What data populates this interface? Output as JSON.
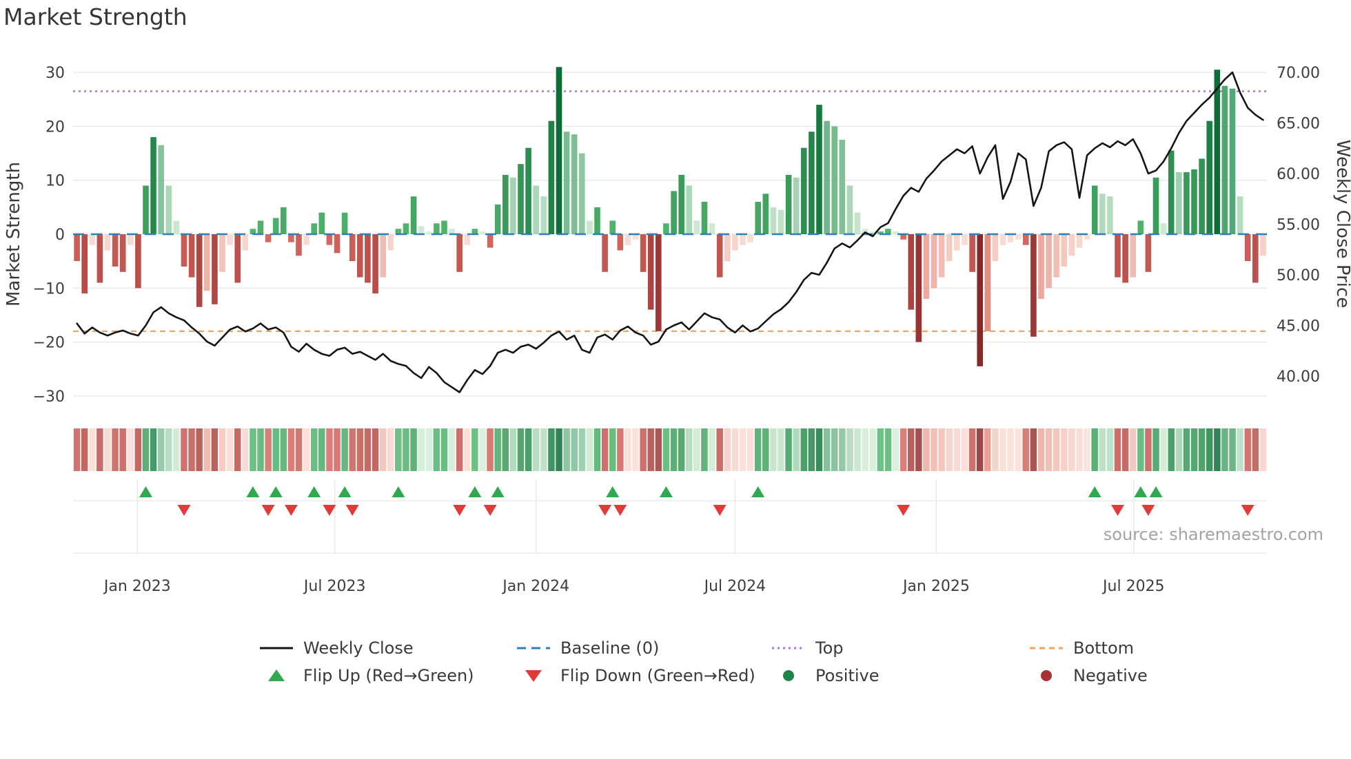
{
  "title": "Market Strength",
  "source": "source: sharemaestro.com",
  "legend": {
    "weekly_close": "Weekly Close",
    "baseline": "Baseline (0)",
    "top": "Top",
    "bottom": "Bottom",
    "flip_up": "Flip Up (Red→Green)",
    "flip_down": "Flip Down (Green→Red)",
    "positive": "Positive",
    "negative": "Negative"
  },
  "colors": {
    "close_line": "#141414",
    "baseline": "#2d7fb8",
    "top_line": "#9b7fd4",
    "bottom_line": "#f0a45a",
    "flip_up": "#2fa94f",
    "flip_down": "#e03a3a",
    "positive_dot": "#1e8449",
    "negative_dot": "#a93232",
    "pos_dark": "#0d6e38",
    "pos_mid": "#55b86f",
    "pos_light_hi": "#4da56f",
    "pos_light_lo": "#d6eed9",
    "neg_dark": "#7e1e1e",
    "neg_mid": "#da6b63",
    "neg_light_hi": "#d95f4c",
    "neg_light_lo": "#fbe3dc",
    "grid": "#e7e7e7",
    "tick_text": "#3d3d3d"
  },
  "left_axis": {
    "label": "Market Strength",
    "ticks": [
      "30",
      "20",
      "10",
      "0",
      "−10",
      "−20",
      "−30"
    ],
    "tick_values": [
      30,
      20,
      10,
      0,
      -10,
      -20,
      -30
    ]
  },
  "right_axis": {
    "label": "Weekly Close Price",
    "ticks": [
      "70.00",
      "65.00",
      "60.00",
      "55.00",
      "50.00",
      "45.00",
      "40.00"
    ],
    "tick_values": [
      70,
      65,
      60,
      55,
      50,
      45,
      40
    ]
  },
  "x_axis": {
    "ticks": [
      {
        "label": "Jan 2023",
        "week_index": 7.9
      },
      {
        "label": "Jul 2023",
        "week_index": 33.7
      },
      {
        "label": "Jan 2024",
        "week_index": 60.0
      },
      {
        "label": "Jul 2024",
        "week_index": 86.0
      },
      {
        "label": "Jan 2025",
        "week_index": 112.3
      },
      {
        "label": "Jul 2025",
        "week_index": 138.1
      }
    ]
  },
  "reference_lines": {
    "baseline_value": 0,
    "top_value": 26.5,
    "bottom_value": -18
  },
  "chart_data": {
    "type": "combo",
    "title": "Market Strength",
    "x_unit": "week",
    "n_points": 156,
    "left_ylim": [
      -33,
      33
    ],
    "right_ylim": [
      38.2,
      71.2
    ],
    "grid": true,
    "legend_position": "bottom",
    "series": [
      {
        "name": "Market Strength",
        "type": "bar",
        "axis": "left",
        "values": [
          -5,
          -11,
          -2,
          -9,
          -3,
          -6,
          -7,
          -2,
          -10,
          9,
          18,
          16.5,
          9,
          2.5,
          -6,
          -8,
          -13.5,
          -10.5,
          -13,
          -7,
          -2,
          -9,
          -3,
          1,
          2.5,
          -1.5,
          3,
          5,
          -1.5,
          -4,
          -2,
          2,
          4,
          -2,
          -3.5,
          4,
          -5,
          -8,
          -9,
          -11,
          -8,
          -3,
          1,
          2,
          7,
          1.5,
          0.5,
          2,
          2.5,
          1,
          -7,
          -2,
          1,
          0.5,
          -2.5,
          5.5,
          11,
          10.5,
          13,
          16,
          9,
          7,
          21,
          31,
          19,
          18.5,
          15,
          2.5,
          5,
          -7,
          2.5,
          -3,
          -2,
          -1,
          -7,
          -14,
          -18,
          2,
          8,
          11,
          9,
          2.5,
          6,
          2,
          -8,
          -5,
          -3,
          -2,
          -1.5,
          6,
          7.5,
          5,
          4.5,
          11,
          10.5,
          16,
          19,
          24,
          21,
          20,
          17.5,
          9,
          4,
          1,
          0.5,
          0.5,
          1,
          0.5,
          -1,
          -14,
          -20,
          -12,
          -10,
          -8,
          -5,
          -3,
          -2,
          -7,
          -24.5,
          -18,
          -5,
          -2,
          -1.5,
          -1,
          -2,
          -19,
          -12,
          -10,
          -8,
          -6,
          -4,
          -2.5,
          -1,
          9,
          7.5,
          7,
          -8,
          -9,
          -8,
          2.5,
          -7,
          10.5,
          2,
          15.5,
          11.5,
          11.5,
          12,
          14,
          21,
          30.5,
          27.5,
          27,
          7,
          -5,
          -9,
          -4
        ]
      },
      {
        "name": "Weekly Close",
        "type": "line",
        "axis": "right",
        "values": [
          45.2,
          44.2,
          44.8,
          44.3,
          44.0,
          44.3,
          44.5,
          44.2,
          44.0,
          45.0,
          46.3,
          46.8,
          46.2,
          45.8,
          45.5,
          44.8,
          44.2,
          43.4,
          43.0,
          43.8,
          44.6,
          44.9,
          44.4,
          44.7,
          45.2,
          44.6,
          44.8,
          44.3,
          42.9,
          42.4,
          43.2,
          42.6,
          42.2,
          42.0,
          42.6,
          42.8,
          42.2,
          42.4,
          42.0,
          41.6,
          42.2,
          41.5,
          41.2,
          41.0,
          40.3,
          39.8,
          40.9,
          40.3,
          39.4,
          38.9,
          38.4,
          39.6,
          40.6,
          40.2,
          41.0,
          42.3,
          42.6,
          42.3,
          42.9,
          43.1,
          42.7,
          43.3,
          44.0,
          44.4,
          43.6,
          44.0,
          42.6,
          42.3,
          43.8,
          44.1,
          43.6,
          44.5,
          44.9,
          44.3,
          44.0,
          43.1,
          43.4,
          44.6,
          45.0,
          45.3,
          44.6,
          45.4,
          46.2,
          45.8,
          45.6,
          44.8,
          44.3,
          45.0,
          44.4,
          44.7,
          45.4,
          46.1,
          46.6,
          47.3,
          48.3,
          49.5,
          50.2,
          50.0,
          51.2,
          52.6,
          53.1,
          52.7,
          53.4,
          54.2,
          53.8,
          54.7,
          55.1,
          56.5,
          57.8,
          58.6,
          58.2,
          59.5,
          60.3,
          61.2,
          61.8,
          62.4,
          62.0,
          62.7,
          60.0,
          61.6,
          62.8,
          57.5,
          59.2,
          62.0,
          61.4,
          56.8,
          58.6,
          62.2,
          62.8,
          63.1,
          62.4,
          57.6,
          61.8,
          62.5,
          63.0,
          62.6,
          63.2,
          62.8,
          63.4,
          62.0,
          60.0,
          60.3,
          61.2,
          62.5,
          64.0,
          65.2,
          66.0,
          66.8,
          67.5,
          68.4,
          69.3,
          70.0,
          68.0,
          66.5,
          65.8,
          65.3
        ]
      }
    ],
    "flip_up_week_indices": [
      9,
      23,
      26,
      31,
      35,
      42,
      52,
      55,
      70,
      77,
      89,
      133,
      139,
      141
    ],
    "flip_down_week_indices": [
      14,
      25,
      28,
      33,
      36,
      50,
      54,
      69,
      71,
      84,
      108,
      136,
      140,
      153
    ]
  }
}
